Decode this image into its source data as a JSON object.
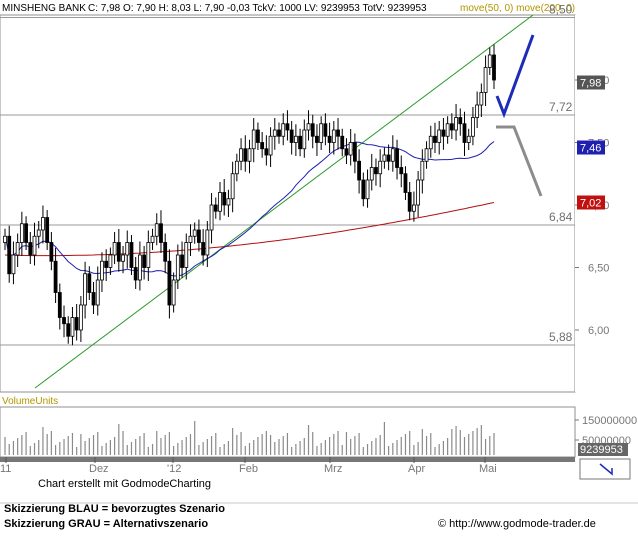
{
  "header": {
    "title": "MINSHENG BANK",
    "quote": "C: 7,98 O: 7,90 H: 8,03 L: 7,90 -0,03 TckV: 1000 LV: 9239953 TotV: 9239953",
    "ma_legend": "move(50, 0) move(200, 0)"
  },
  "volume_label": "VolumeUnits",
  "footer": {
    "credit": "Chart erstellt mit GodmodeCharting",
    "legend_blue": "Skizzierung BLAU = bevorzugtes Szenario",
    "legend_gray": "Skizzierung GRAU = Alternativszenario",
    "url": "© http://www.godmode-trader.de"
  },
  "colors": {
    "ma50": "#1f1fb0",
    "ma200": "#b01010",
    "trend": "#2a9a2a",
    "scenario_blue": "#1c2cb8",
    "scenario_gray": "#8c8c8c",
    "candle": "#000000",
    "level_line": "#9a9a9a"
  },
  "chart_data": {
    "type": "candlestick",
    "yaxis": {
      "ticks": [
        "8,00",
        "7,50",
        "7,00",
        "6,50",
        "6,00"
      ],
      "tick_values": [
        8.0,
        7.5,
        7.0,
        6.5,
        6.0
      ],
      "range": [
        5.83,
        8.38
      ]
    },
    "xaxis": {
      "labels": [
        "11",
        "Dez",
        "'12",
        "Feb",
        "Mrz",
        "Apr",
        "Mai"
      ]
    },
    "horizontal_levels": [
      {
        "value": 8.5,
        "label": "8,50"
      },
      {
        "value": 7.72,
        "label": "7,72"
      },
      {
        "value": 6.84,
        "label": "6,84"
      },
      {
        "value": 5.88,
        "label": "5,88"
      }
    ],
    "price_badges": [
      {
        "value": 7.98,
        "label": "7,98",
        "color": "#555555"
      },
      {
        "value": 7.46,
        "label": "7,46",
        "color": "#1f1fb0"
      },
      {
        "value": 7.02,
        "label": "7,02",
        "color": "#c01010"
      }
    ],
    "close_series": [
      6.75,
      6.45,
      6.6,
      6.7,
      6.85,
      6.7,
      6.6,
      6.75,
      6.8,
      6.9,
      6.7,
      6.55,
      6.3,
      6.1,
      6.05,
      5.95,
      6.1,
      6.0,
      6.2,
      6.45,
      6.3,
      6.2,
      6.4,
      6.55,
      6.5,
      6.6,
      6.7,
      6.55,
      6.6,
      6.7,
      6.5,
      6.4,
      6.6,
      6.5,
      6.7,
      6.75,
      6.85,
      6.7,
      6.55,
      6.2,
      6.4,
      6.6,
      6.5,
      6.7,
      6.75,
      6.8,
      6.7,
      6.6,
      6.8,
      7.0,
      6.95,
      7.1,
      7.0,
      7.05,
      7.25,
      7.35,
      7.45,
      7.35,
      7.45,
      7.6,
      7.5,
      7.45,
      7.4,
      7.55,
      7.6,
      7.55,
      7.65,
      7.6,
      7.5,
      7.55,
      7.45,
      7.6,
      7.65,
      7.55,
      7.5,
      7.65,
      7.55,
      7.5,
      7.6,
      7.55,
      7.45,
      7.4,
      7.5,
      7.35,
      7.2,
      7.05,
      7.2,
      7.3,
      7.25,
      7.35,
      7.4,
      7.35,
      7.45,
      7.3,
      7.25,
      7.1,
      6.95,
      7.0,
      7.2,
      7.35,
      7.45,
      7.55,
      7.5,
      7.6,
      7.55,
      7.65,
      7.6,
      7.7,
      7.65,
      7.5,
      7.55,
      7.7,
      7.8,
      7.9,
      8.1,
      8.2,
      8.0
    ],
    "ma50": {
      "name": "move(50, 0)",
      "last": 7.46
    },
    "ma200": {
      "name": "move(200, 0)",
      "last": 7.02
    },
    "volume": {
      "ticks": [
        "150000000",
        "50000000"
      ],
      "last": "9239953"
    }
  }
}
